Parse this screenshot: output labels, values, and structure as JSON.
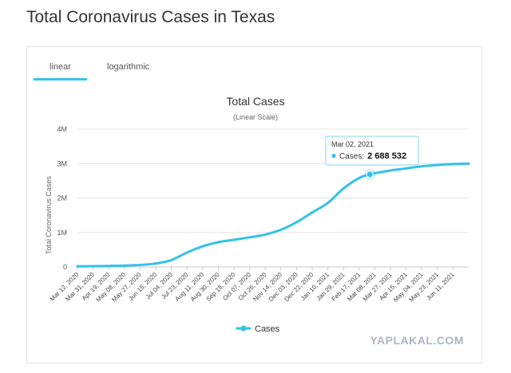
{
  "page_title": "Total Coronavirus Cases in Texas",
  "tabs": [
    {
      "label": "linear",
      "active": true
    },
    {
      "label": "logarithmic",
      "active": false
    }
  ],
  "watermark": "YAPLAKAL.COM",
  "accent_color": "#33c2e8",
  "chart_data": {
    "type": "line",
    "title": "Total Cases",
    "subtitle": "(Linear Scale)",
    "ylabel": "Total Coronavirus Cases",
    "xlabel": "",
    "ylim": [
      0,
      4000000
    ],
    "y_ticks": [
      0,
      1000000,
      2000000,
      3000000,
      4000000
    ],
    "y_tick_labels": [
      "0",
      "1M",
      "2M",
      "3M",
      "4M"
    ],
    "grid": true,
    "legend_position": "bottom-center",
    "x_tick_labels": [
      "Mar 12, 2020",
      "Mar 31, 2020",
      "Apr 19, 2020",
      "May 08, 2020",
      "May 27, 2020",
      "Jun 15, 2020",
      "Jul 04, 2020",
      "Jul 23, 2020",
      "Aug 11, 2020",
      "Aug 30, 2020",
      "Sep 18, 2020",
      "Oct 07, 2020",
      "Oct 26, 2020",
      "Nov 14, 2020",
      "Dec 03, 2020",
      "Dec 22, 2020",
      "Jan 10, 2021",
      "Jan 29, 2021",
      "Feb 17, 2021",
      "Mar 08, 2021",
      "Mar 27, 2021",
      "Apr 15, 2021",
      "May 04, 2021",
      "May 23, 2021",
      "Jun 11, 2021"
    ],
    "series": [
      {
        "name": "Cases",
        "color": "#33c2e8",
        "x": [
          "2020-03-12",
          "2020-04-07",
          "2020-05-08",
          "2020-05-27",
          "2020-06-15",
          "2020-07-04",
          "2020-07-23",
          "2020-08-11",
          "2020-08-30",
          "2020-09-18",
          "2020-10-07",
          "2020-10-26",
          "2020-11-14",
          "2020-12-03",
          "2020-12-22",
          "2021-01-10",
          "2021-01-29",
          "2021-02-17",
          "2021-03-02",
          "2021-03-08",
          "2021-03-27",
          "2021-04-15",
          "2021-05-04",
          "2021-05-23",
          "2021-06-11",
          "2021-06-30"
        ],
        "values": [
          20000,
          25000,
          40000,
          60000,
          100000,
          200000,
          420000,
          600000,
          720000,
          790000,
          860000,
          940000,
          1080000,
          1300000,
          1580000,
          1860000,
          2280000,
          2580000,
          2688532,
          2720000,
          2800000,
          2860000,
          2920000,
          2960000,
          2985000,
          3000000
        ]
      }
    ],
    "tooltip": {
      "date": "Mar 02, 2021",
      "series": "Cases",
      "value": "2 688 532"
    }
  }
}
